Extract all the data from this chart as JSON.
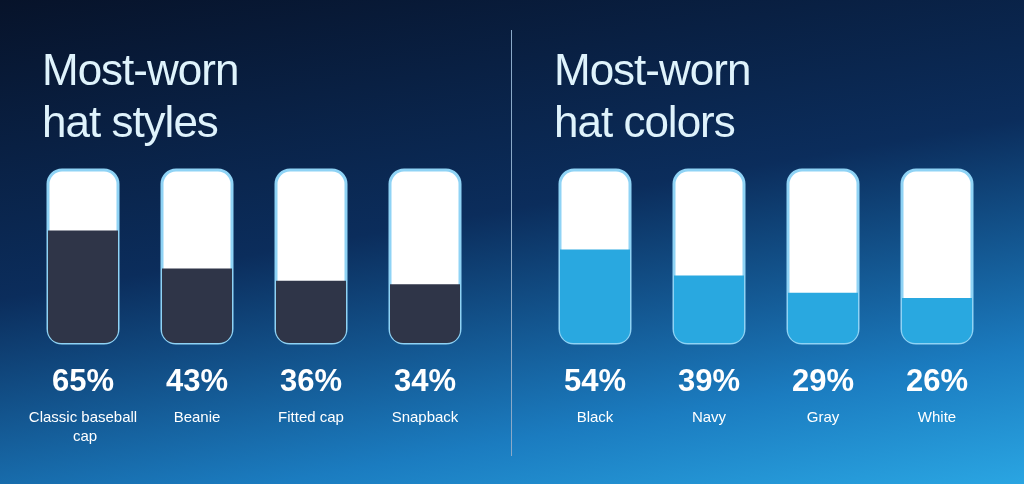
{
  "chart_data": [
    {
      "type": "bar",
      "title": "Most-worn hat styles",
      "categories": [
        "Classic baseball cap",
        "Beanie",
        "Fitted cap",
        "Snapback"
      ],
      "values": [
        65,
        43,
        36,
        34
      ],
      "value_labels": [
        "65%",
        "43%",
        "36%",
        "34%"
      ],
      "color": "#2f3548",
      "ylim": [
        0,
        100
      ],
      "tick_labels": "x"
    },
    {
      "type": "bar",
      "title": "Most-worn hat colors",
      "categories": [
        "Black",
        "Navy",
        "Gray",
        "White"
      ],
      "values": [
        54,
        39,
        29,
        26
      ],
      "value_labels": [
        "54%",
        "39%",
        "29%",
        "26%"
      ],
      "color": "#29a8e0",
      "ylim": [
        0,
        100
      ],
      "tick_labels": "x"
    }
  ]
}
